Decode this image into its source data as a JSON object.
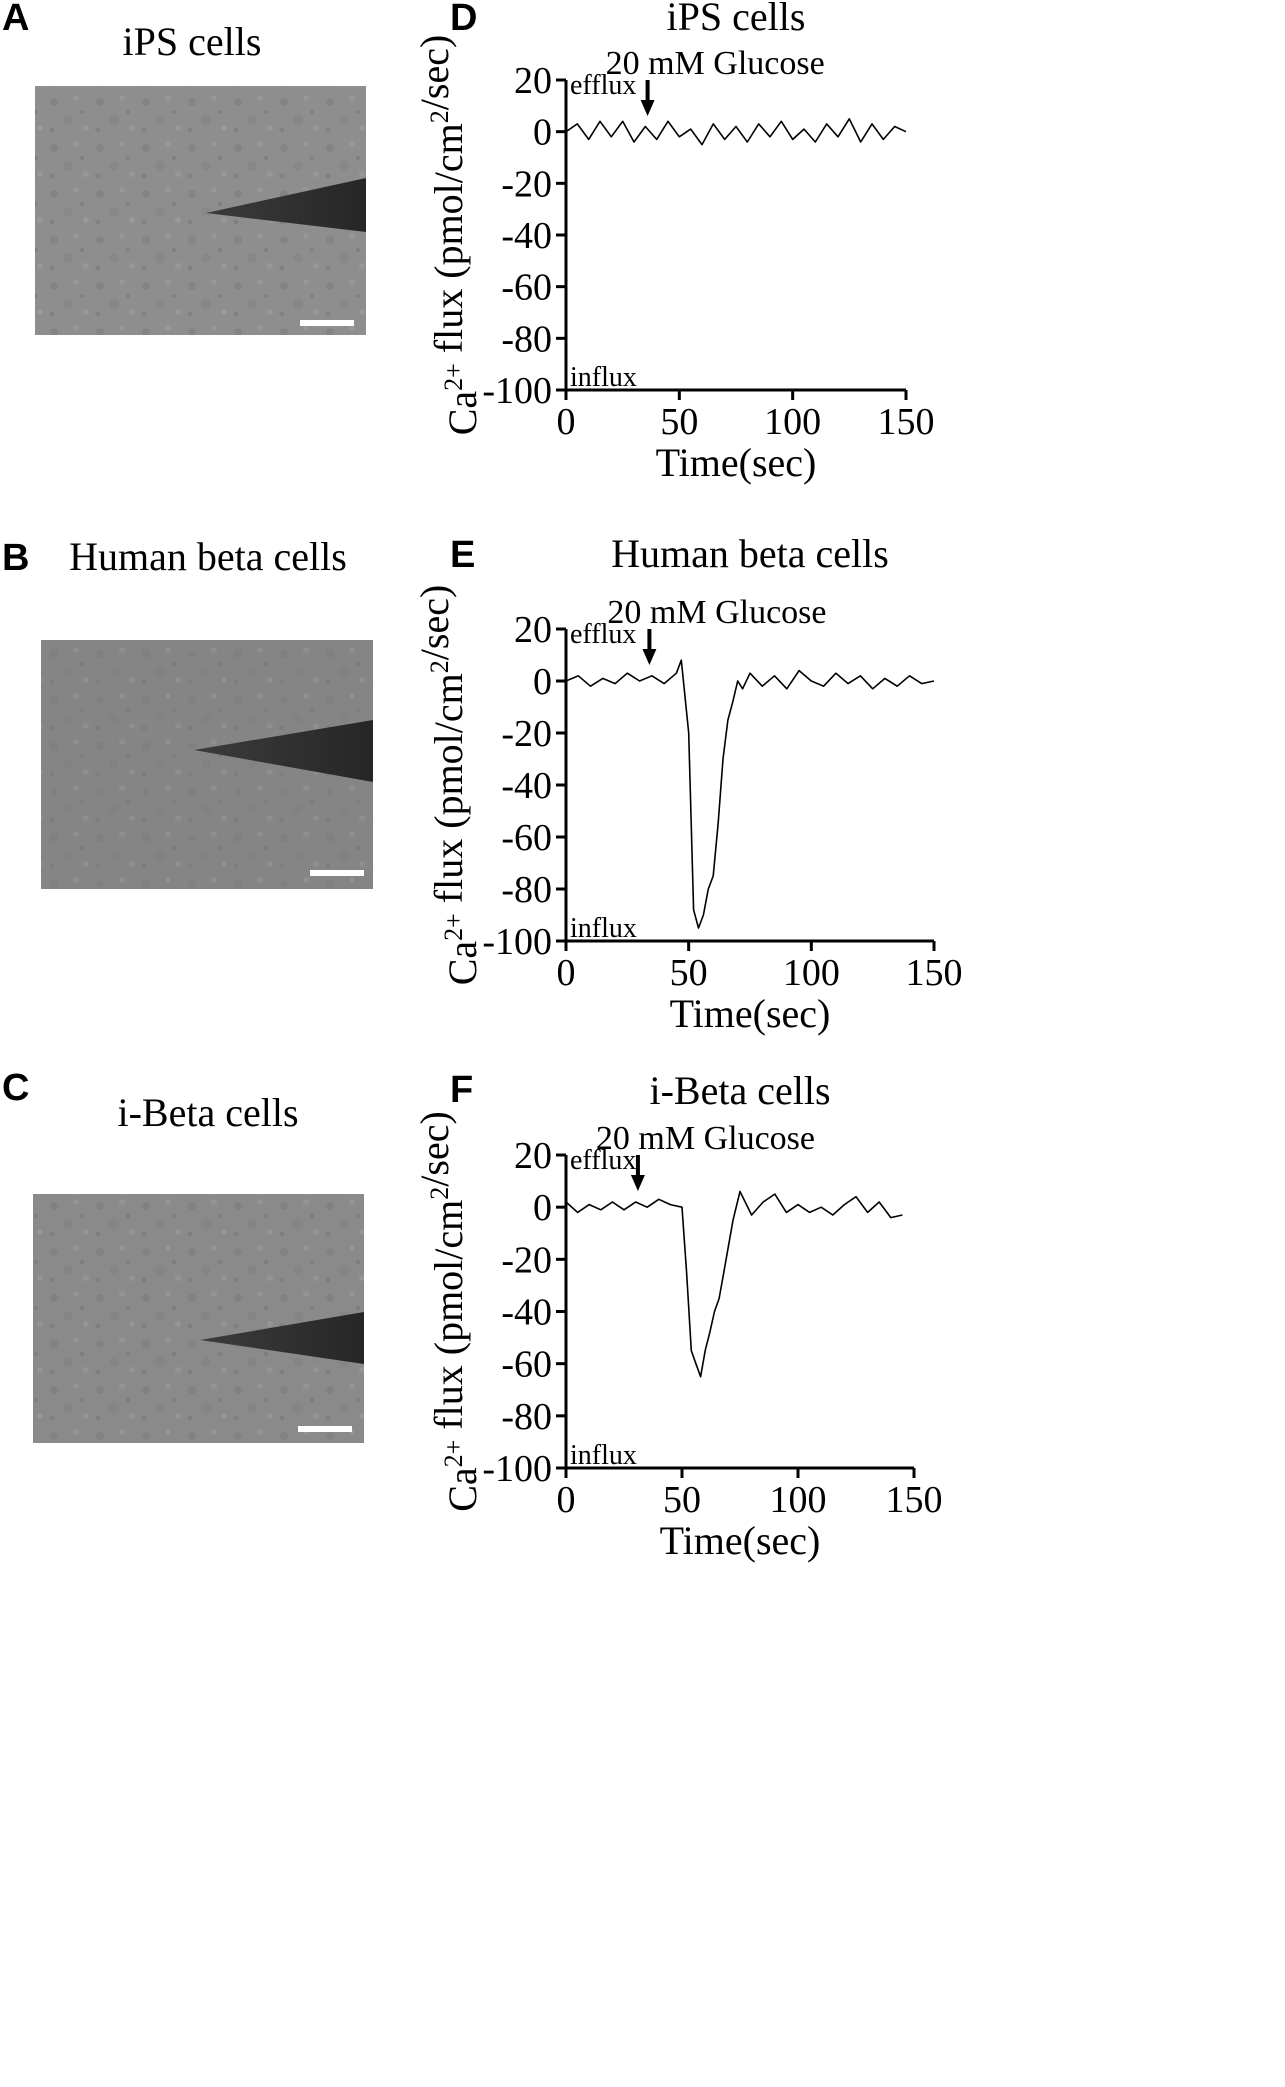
{
  "micrographs": [
    {
      "letter": "A",
      "title": "iPS cells",
      "tone": "#8e8e8e"
    },
    {
      "letter": "B",
      "title": "Human beta cells",
      "tone": "#858585"
    },
    {
      "letter": "C",
      "title": "i-Beta cells",
      "tone": "#8a8a8a"
    }
  ],
  "chart_data": [
    {
      "type": "line",
      "letter": "D",
      "title": "iPS cells",
      "xlabel": "Time(sec)",
      "ylabel": "Ca2+ flux (pmol/cm2/sec)",
      "xlim": [
        0,
        150
      ],
      "ylim": [
        -100,
        20
      ],
      "xticks": [
        0,
        50,
        100,
        150
      ],
      "yticks": [
        20,
        0,
        -20,
        -40,
        -60,
        -80,
        -100
      ],
      "efflux_label": "efflux",
      "influx_label": "influx",
      "annotation": {
        "text": "20 mM Glucose",
        "x": 36
      },
      "series": [
        {
          "x": [
            0,
            5,
            10,
            15,
            20,
            25,
            30,
            35,
            40,
            45,
            50,
            55,
            60,
            65,
            70,
            75,
            80,
            85,
            90,
            95,
            100,
            105,
            110,
            115,
            120,
            125,
            130,
            135,
            140,
            145,
            150
          ],
          "y": [
            0,
            3,
            -3,
            4,
            -2,
            4,
            -4,
            2,
            -3,
            4,
            -2,
            1,
            -5,
            3,
            -3,
            2,
            -4,
            3,
            -2,
            4,
            -3,
            1,
            -4,
            3,
            -2,
            5,
            -4,
            3,
            -3,
            2,
            0
          ]
        }
      ]
    },
    {
      "type": "line",
      "letter": "E",
      "title": "Human beta cells",
      "xlabel": "Time(sec)",
      "ylabel": "Ca2+ flux (pmol/cm2/sec)",
      "xlim": [
        0,
        150
      ],
      "ylim": [
        -100,
        20
      ],
      "xticks": [
        0,
        50,
        100,
        150
      ],
      "yticks": [
        20,
        0,
        -20,
        -40,
        -60,
        -80,
        -100
      ],
      "efflux_label": "efflux",
      "influx_label": "influx",
      "annotation": {
        "text": "20 mM Glucose",
        "x": 34
      },
      "series": [
        {
          "x": [
            0,
            5,
            10,
            15,
            20,
            25,
            30,
            35,
            40,
            45,
            47,
            50,
            52,
            54,
            56,
            58,
            60,
            62,
            64,
            66,
            68,
            70,
            72,
            75,
            80,
            85,
            90,
            95,
            100,
            105,
            110,
            115,
            120,
            125,
            130,
            135,
            140,
            145,
            150
          ],
          "y": [
            0,
            2,
            -2,
            1,
            -1,
            3,
            0,
            2,
            -1,
            3,
            8,
            -20,
            -88,
            -95,
            -90,
            -80,
            -75,
            -55,
            -30,
            -15,
            -8,
            0,
            -3,
            3,
            -2,
            2,
            -3,
            4,
            0,
            -2,
            3,
            -1,
            2,
            -3,
            1,
            -2,
            2,
            -1,
            0
          ]
        }
      ]
    },
    {
      "type": "line",
      "letter": "F",
      "title": "i-Beta cells",
      "xlabel": "Time(sec)",
      "ylabel": "Ca2+ flux (pmol/cm2/sec)",
      "xlim": [
        0,
        150
      ],
      "ylim": [
        -100,
        20
      ],
      "xticks": [
        0,
        50,
        100,
        150
      ],
      "yticks": [
        20,
        0,
        -20,
        -40,
        -60,
        -80,
        -100
      ],
      "efflux_label": "efflux",
      "influx_label": "influx",
      "annotation": {
        "text": "20 mM Glucose",
        "x": 31
      },
      "series": [
        {
          "x": [
            0,
            5,
            10,
            15,
            20,
            25,
            30,
            35,
            40,
            45,
            50,
            52,
            54,
            56,
            58,
            60,
            62,
            64,
            66,
            68,
            70,
            72,
            75,
            80,
            85,
            90,
            95,
            100,
            105,
            110,
            115,
            120,
            125,
            130,
            135,
            140,
            145
          ],
          "y": [
            2,
            -2,
            1,
            -1,
            2,
            -1,
            2,
            0,
            3,
            1,
            0,
            -25,
            -55,
            -60,
            -65,
            -55,
            -48,
            -40,
            -35,
            -25,
            -15,
            -5,
            6,
            -3,
            2,
            5,
            -2,
            1,
            -2,
            0,
            -3,
            1,
            4,
            -2,
            2,
            -4,
            -3
          ]
        }
      ]
    }
  ]
}
